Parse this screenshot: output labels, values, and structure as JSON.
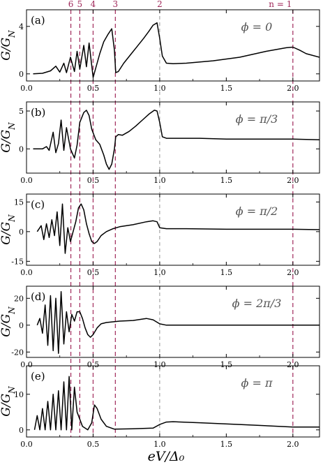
{
  "figure": {
    "xlabel": "eV/Δ₀",
    "ylabel": "G/G_N",
    "harmonic_label_prefix": "n = ",
    "colors": {
      "curve": "#000000",
      "axis": "#000000",
      "harmonic_line": "#a0285a",
      "gap_line": "#888888"
    }
  },
  "chart_data": [
    {
      "panel": "(a)",
      "type": "line",
      "annotation": "ϕ = 0",
      "xlim": [
        0,
        2.2
      ],
      "ylim": [
        -0.6,
        5.4
      ],
      "xticks": [
        0.0,
        0.5,
        1.0,
        1.5,
        2.0
      ],
      "xticklabels": [
        "0.0",
        "0.5",
        "1.0",
        "1.5",
        "2.0"
      ],
      "yticks": [
        0,
        4
      ],
      "yticklabels": [
        "0",
        "4"
      ],
      "series": [
        {
          "x": [
            0.05,
            0.12,
            0.18,
            0.22,
            0.25,
            0.28,
            0.3,
            0.33,
            0.36,
            0.38,
            0.4,
            0.43,
            0.45,
            0.47,
            0.49,
            0.5,
            0.52,
            0.55,
            0.58,
            0.61,
            0.64,
            0.66,
            0.67,
            0.69,
            0.73,
            0.78,
            0.83,
            0.88,
            0.92,
            0.95,
            0.98,
            1.0,
            1.02,
            1.05,
            1.1,
            1.2,
            1.4,
            1.6,
            1.8,
            1.95,
            2.0,
            2.05,
            2.1,
            2.2
          ],
          "y": [
            0.0,
            0.05,
            0.25,
            0.65,
            0.15,
            0.9,
            0.1,
            1.4,
            0.2,
            1.9,
            0.4,
            2.4,
            0.6,
            2.6,
            0.7,
            -0.3,
            0.5,
            1.7,
            2.7,
            3.3,
            3.8,
            2.0,
            0.1,
            0.2,
            0.9,
            1.6,
            2.3,
            3.0,
            3.6,
            4.1,
            4.3,
            3.0,
            1.5,
            0.9,
            0.85,
            0.9,
            1.1,
            1.4,
            1.9,
            2.2,
            2.25,
            2.0,
            1.7,
            1.4
          ]
        }
      ]
    },
    {
      "panel": "(b)",
      "type": "line",
      "annotation": "ϕ = π/3",
      "xlim": [
        0,
        2.2
      ],
      "ylim": [
        -3.2,
        6.2
      ],
      "xticks": [
        0.0,
        0.5,
        1.0,
        1.5,
        2.0
      ],
      "xticklabels": [
        "0.0",
        "0.5",
        "1.0",
        "1.5",
        "2.0"
      ],
      "yticks": [
        0,
        5
      ],
      "yticklabels": [
        "0",
        "5"
      ],
      "series": [
        {
          "x": [
            0.05,
            0.12,
            0.15,
            0.17,
            0.2,
            0.22,
            0.24,
            0.26,
            0.28,
            0.3,
            0.33,
            0.36,
            0.38,
            0.4,
            0.43,
            0.45,
            0.47,
            0.49,
            0.52,
            0.55,
            0.58,
            0.6,
            0.62,
            0.64,
            0.66,
            0.67,
            0.69,
            0.72,
            0.77,
            0.82,
            0.87,
            0.92,
            0.96,
            0.98,
            1.0,
            1.02,
            1.05,
            1.1,
            1.3,
            1.5,
            1.8,
            2.0,
            2.2
          ],
          "y": [
            0.0,
            0.0,
            0.3,
            -0.2,
            2.2,
            -0.5,
            0.7,
            3.8,
            -0.2,
            2.8,
            0.0,
            -1.2,
            0.5,
            3.5,
            4.8,
            5.1,
            4.4,
            2.6,
            1.2,
            0.6,
            -0.8,
            -2.0,
            -2.7,
            -2.0,
            0.0,
            1.6,
            1.9,
            1.8,
            2.3,
            3.0,
            3.8,
            4.6,
            5.1,
            5.0,
            3.5,
            1.6,
            1.4,
            1.4,
            1.4,
            1.3,
            1.3,
            1.3,
            1.2
          ]
        }
      ]
    },
    {
      "panel": "(c)",
      "type": "line",
      "annotation": "ϕ = π/2",
      "xlim": [
        0,
        2.2
      ],
      "ylim": [
        -17,
        19
      ],
      "xticks": [
        0.0,
        0.5,
        1.0,
        1.5,
        2.0
      ],
      "xticklabels": [
        "0.0",
        "0.5",
        "1.0",
        "1.5",
        "2.0"
      ],
      "yticks": [
        -15,
        0,
        15
      ],
      "yticklabels": [
        "-15",
        "0",
        "15"
      ],
      "series": [
        {
          "x": [
            0.08,
            0.11,
            0.13,
            0.15,
            0.17,
            0.19,
            0.21,
            0.23,
            0.25,
            0.27,
            0.29,
            0.31,
            0.33,
            0.35,
            0.37,
            0.39,
            0.41,
            0.43,
            0.45,
            0.47,
            0.49,
            0.51,
            0.53,
            0.56,
            0.6,
            0.65,
            0.7,
            0.8,
            0.9,
            0.95,
            0.98,
            1.0,
            1.05,
            1.2,
            1.5,
            2.0,
            2.2
          ],
          "y": [
            0.0,
            3.0,
            -4.0,
            4.0,
            -3.0,
            6.0,
            -2.0,
            10.0,
            -7.0,
            14.0,
            -11.0,
            2.0,
            -5.0,
            0.0,
            5.0,
            12.0,
            14.0,
            11.0,
            4.0,
            -1.0,
            -5.0,
            -6.0,
            -5.0,
            -2.0,
            0.0,
            1.5,
            2.5,
            3.5,
            5.0,
            5.5,
            5.0,
            2.0,
            1.5,
            1.5,
            1.2,
            1.2,
            1.0
          ]
        }
      ]
    },
    {
      "panel": "(d)",
      "type": "line",
      "annotation": "ϕ = 2π/3",
      "xlim": [
        0,
        2.2
      ],
      "ylim": [
        -24,
        29
      ],
      "xticks": [
        0.0,
        0.5,
        1.0,
        1.5,
        2.0
      ],
      "xticklabels": [
        "0.0",
        "0.5",
        "1.0",
        "1.5",
        "2.0"
      ],
      "yticks": [
        -20,
        0,
        20
      ],
      "yticklabels": [
        "-20",
        "0",
        "20"
      ],
      "series": [
        {
          "x": [
            0.08,
            0.1,
            0.12,
            0.14,
            0.16,
            0.18,
            0.2,
            0.22,
            0.24,
            0.26,
            0.28,
            0.3,
            0.32,
            0.34,
            0.36,
            0.38,
            0.4,
            0.42,
            0.44,
            0.46,
            0.48,
            0.5,
            0.53,
            0.56,
            0.6,
            0.65,
            0.7,
            0.8,
            0.9,
            0.95,
            1.0,
            1.05,
            1.2,
            1.5,
            2.0,
            2.2
          ],
          "y": [
            0.0,
            5.0,
            -6.0,
            15.0,
            -15.0,
            22.0,
            -19.0,
            20.0,
            -21.0,
            25.0,
            -14.0,
            10.0,
            -5.0,
            8.0,
            3.0,
            10.0,
            10.0,
            5.0,
            -2.0,
            -7.0,
            -9.0,
            -7.0,
            -2.0,
            1.0,
            2.0,
            2.5,
            3.0,
            3.5,
            5.0,
            4.0,
            1.0,
            0.0,
            0.0,
            0.0,
            0.0,
            0.0
          ]
        }
      ]
    },
    {
      "panel": "(e)",
      "type": "line",
      "annotation": "ϕ = π",
      "xlim": [
        0,
        2.2
      ],
      "ylim": [
        -2,
        18
      ],
      "xticks": [
        0.0,
        0.5,
        1.0,
        1.5,
        2.0
      ],
      "xticklabels": [
        "0.0",
        "0.5",
        "1.0",
        "1.5",
        "2.0"
      ],
      "yticks": [
        0,
        10
      ],
      "yticklabels": [
        "0",
        "10"
      ],
      "series": [
        {
          "x": [
            0.06,
            0.08,
            0.1,
            0.12,
            0.14,
            0.16,
            0.18,
            0.2,
            0.22,
            0.24,
            0.26,
            0.28,
            0.3,
            0.32,
            0.34,
            0.36,
            0.38,
            0.42,
            0.46,
            0.49,
            0.51,
            0.53,
            0.56,
            0.6,
            0.66,
            0.8,
            0.95,
            1.0,
            1.05,
            1.1,
            1.3,
            1.6,
            2.0,
            2.2
          ],
          "y": [
            0.0,
            4.0,
            0.0,
            6.0,
            0.0,
            8.0,
            0.0,
            10.0,
            0.0,
            11.0,
            0.0,
            13.5,
            0.0,
            15.0,
            0.0,
            12.0,
            5.0,
            1.0,
            0.0,
            2.0,
            7.0,
            6.0,
            3.0,
            1.0,
            0.2,
            0.3,
            0.5,
            1.5,
            2.2,
            2.3,
            2.0,
            1.5,
            0.8,
            0.8
          ]
        }
      ]
    }
  ],
  "harmonic_lines": {
    "type": "reference-lines",
    "labels": [
      "6",
      "5",
      "4",
      "3",
      "2",
      "1"
    ],
    "x": [
      0.333,
      0.4,
      0.5,
      0.667,
      1.0,
      2.0
    ],
    "style": [
      "dashed",
      "dashed",
      "dashed",
      "dashed",
      "gap-dashed",
      "dashed"
    ]
  }
}
